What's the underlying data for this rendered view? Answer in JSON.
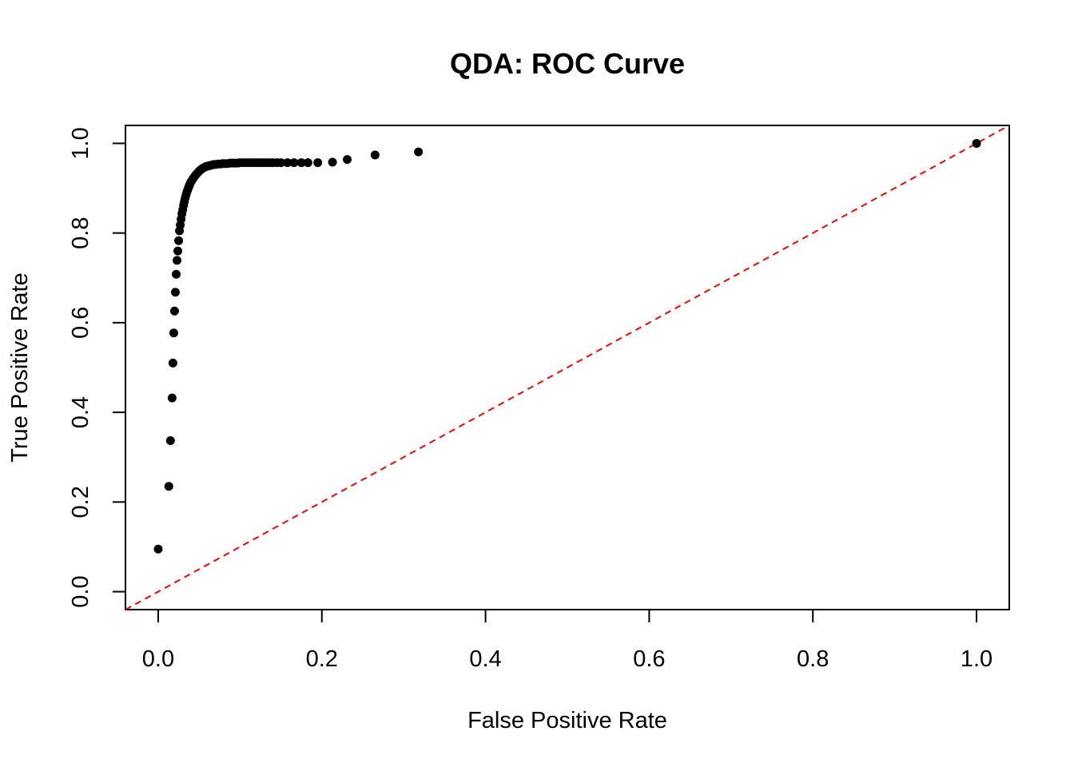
{
  "chart_data": {
    "type": "scatter",
    "title": "QDA: ROC Curve",
    "xlabel": "False Positive Rate",
    "ylabel": "True Positive Rate",
    "xlim": [
      -0.04,
      1.04
    ],
    "ylim": [
      -0.04,
      1.04
    ],
    "xticks": [
      "0.0",
      "0.2",
      "0.4",
      "0.6",
      "0.8",
      "1.0"
    ],
    "yticks": [
      "0.0",
      "0.2",
      "0.4",
      "0.6",
      "0.8",
      "1.0"
    ],
    "grid": false,
    "legend": "none",
    "point_color": "#000000",
    "reference_line": {
      "from": [
        0,
        0
      ],
      "to": [
        1,
        1
      ],
      "color": "#ff0000",
      "style": "dashed"
    },
    "points": {
      "x": [
        0.0,
        0.013,
        0.015,
        0.017,
        0.018,
        0.019,
        0.02,
        0.021,
        0.022,
        0.023,
        0.024,
        0.025,
        0.026,
        0.027,
        0.028,
        0.029,
        0.03,
        0.031,
        0.032,
        0.033,
        0.034,
        0.035,
        0.036,
        0.037,
        0.038,
        0.039,
        0.04,
        0.042,
        0.044,
        0.046,
        0.048,
        0.05,
        0.052,
        0.054,
        0.056,
        0.058,
        0.06,
        0.062,
        0.064,
        0.066,
        0.068,
        0.07,
        0.073,
        0.076,
        0.079,
        0.082,
        0.085,
        0.088,
        0.091,
        0.094,
        0.097,
        0.1,
        0.104,
        0.108,
        0.112,
        0.116,
        0.12,
        0.124,
        0.128,
        0.132,
        0.136,
        0.14,
        0.145,
        0.15,
        0.158,
        0.166,
        0.175,
        0.183,
        0.195,
        0.213,
        0.231,
        0.265,
        0.318,
        1.0
      ],
      "y": [
        0.095,
        0.235,
        0.337,
        0.432,
        0.51,
        0.577,
        0.626,
        0.668,
        0.708,
        0.739,
        0.76,
        0.783,
        0.805,
        0.818,
        0.831,
        0.843,
        0.852,
        0.862,
        0.87,
        0.878,
        0.885,
        0.891,
        0.896,
        0.901,
        0.906,
        0.91,
        0.914,
        0.92,
        0.925,
        0.93,
        0.934,
        0.938,
        0.941,
        0.944,
        0.946,
        0.948,
        0.949,
        0.95,
        0.951,
        0.952,
        0.953,
        0.953,
        0.954,
        0.954,
        0.955,
        0.955,
        0.955,
        0.956,
        0.956,
        0.956,
        0.956,
        0.957,
        0.957,
        0.957,
        0.957,
        0.957,
        0.957,
        0.957,
        0.957,
        0.957,
        0.957,
        0.957,
        0.957,
        0.957,
        0.957,
        0.957,
        0.957,
        0.957,
        0.957,
        0.958,
        0.964,
        0.974,
        0.981,
        1.0
      ]
    }
  }
}
